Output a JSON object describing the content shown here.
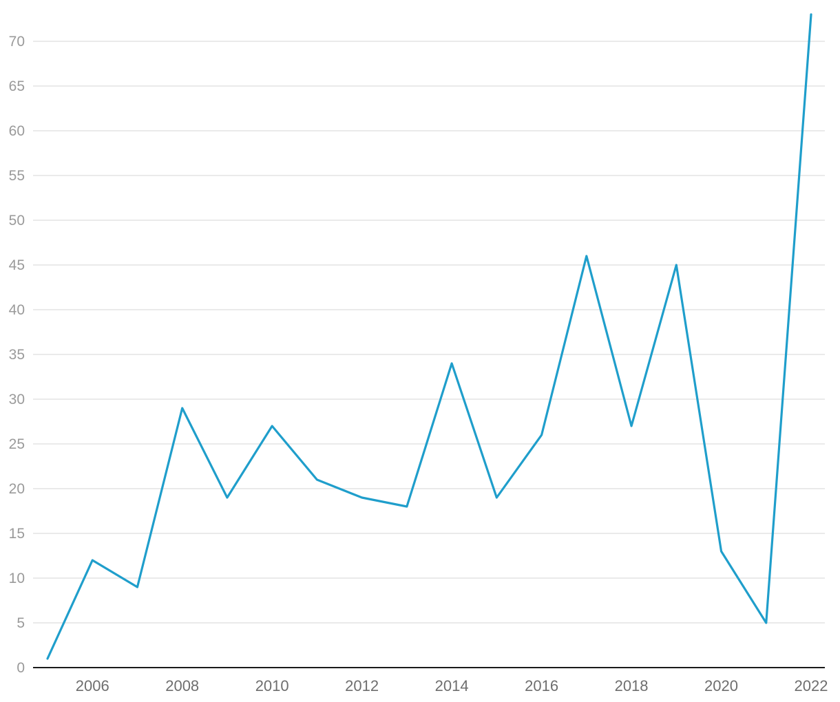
{
  "chart_data": {
    "type": "line",
    "title": "",
    "xlabel": "",
    "ylabel": "",
    "x": [
      2005,
      2006,
      2007,
      2008,
      2009,
      2010,
      2011,
      2012,
      2013,
      2014,
      2015,
      2016,
      2017,
      2018,
      2019,
      2020,
      2021,
      2022
    ],
    "series": [
      {
        "values": [
          1,
          12,
          9,
          29,
          19,
          27,
          21,
          19,
          18,
          34,
          19,
          26,
          46,
          27,
          45,
          13,
          5,
          73
        ],
        "color": "#1f9ecb"
      }
    ],
    "ylim": [
      0,
      73
    ],
    "xlim": [
      2005,
      2022
    ],
    "y_ticks": [
      "0",
      "5",
      "10",
      "15",
      "20",
      "25",
      "30",
      "35",
      "40",
      "45",
      "50",
      "55",
      "60",
      "65",
      "70"
    ],
    "x_ticks": [
      "2006",
      "2008",
      "2010",
      "2012",
      "2014",
      "2016",
      "2018",
      "2020",
      "2022"
    ],
    "grid": true,
    "legend": "none"
  }
}
